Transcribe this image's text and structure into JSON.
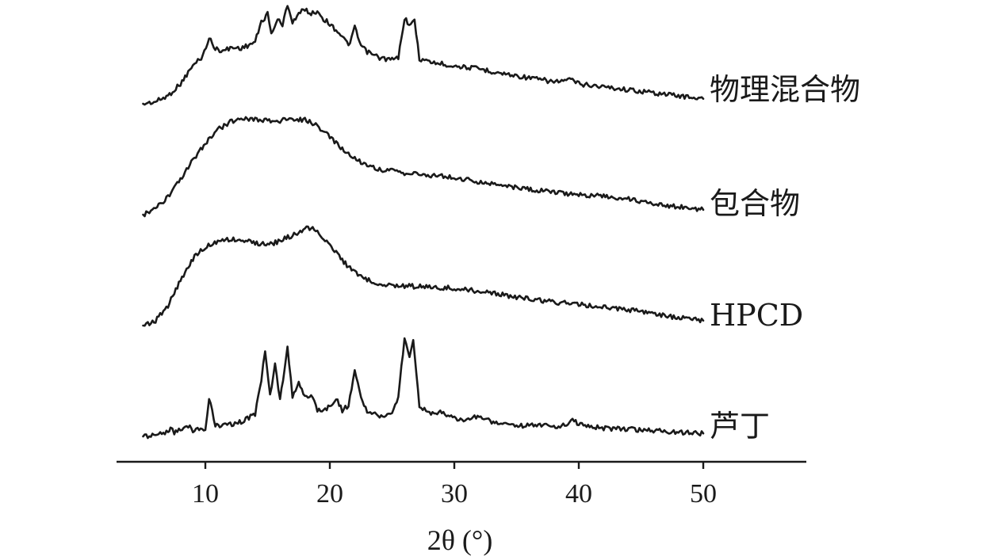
{
  "chart_data": {
    "type": "line",
    "xlabel": "2θ (°)",
    "xlim": [
      5,
      50
    ],
    "x_ticks": [
      10,
      20,
      30,
      40,
      50
    ],
    "y_axis_shown": false,
    "grid": false,
    "legend": "labels at right end of each curve",
    "stacked_offset": true,
    "series": [
      {
        "name": "物理混合物",
        "points": [
          [
            5,
            0.0
          ],
          [
            6,
            0.02
          ],
          [
            7,
            0.08
          ],
          [
            8,
            0.2
          ],
          [
            9,
            0.38
          ],
          [
            9.8,
            0.48
          ],
          [
            10.3,
            0.66
          ],
          [
            10.8,
            0.55
          ],
          [
            11.5,
            0.53
          ],
          [
            12,
            0.56
          ],
          [
            13,
            0.56
          ],
          [
            14,
            0.62
          ],
          [
            14.5,
            0.82
          ],
          [
            15,
            0.9
          ],
          [
            15.3,
            0.7
          ],
          [
            15.8,
            0.85
          ],
          [
            16.2,
            0.78
          ],
          [
            16.6,
            1.0
          ],
          [
            17,
            0.82
          ],
          [
            17.5,
            0.9
          ],
          [
            18,
            0.95
          ],
          [
            18.5,
            0.9
          ],
          [
            19,
            0.93
          ],
          [
            19.5,
            0.85
          ],
          [
            20,
            0.8
          ],
          [
            20.5,
            0.74
          ],
          [
            21,
            0.68
          ],
          [
            21.5,
            0.58
          ],
          [
            22,
            0.76
          ],
          [
            22.5,
            0.58
          ],
          [
            23,
            0.52
          ],
          [
            24,
            0.46
          ],
          [
            25,
            0.44
          ],
          [
            25.5,
            0.46
          ],
          [
            26,
            0.86
          ],
          [
            26.5,
            0.78
          ],
          [
            26.8,
            0.84
          ],
          [
            27.2,
            0.45
          ],
          [
            28,
            0.42
          ],
          [
            29,
            0.4
          ],
          [
            30,
            0.38
          ],
          [
            32,
            0.35
          ],
          [
            34,
            0.3
          ],
          [
            36,
            0.26
          ],
          [
            38,
            0.22
          ],
          [
            39.5,
            0.24
          ],
          [
            40,
            0.2
          ],
          [
            42,
            0.17
          ],
          [
            44,
            0.14
          ],
          [
            46,
            0.11
          ],
          [
            48,
            0.08
          ],
          [
            50,
            0.05
          ]
        ]
      },
      {
        "name": "包合物",
        "points": [
          [
            5,
            0.0
          ],
          [
            6,
            0.06
          ],
          [
            7,
            0.18
          ],
          [
            8,
            0.36
          ],
          [
            9,
            0.56
          ],
          [
            10,
            0.74
          ],
          [
            11,
            0.88
          ],
          [
            12,
            0.96
          ],
          [
            13,
            1.0
          ],
          [
            14,
            0.99
          ],
          [
            15,
            0.97
          ],
          [
            16,
            0.97
          ],
          [
            17,
            0.99
          ],
          [
            18,
            0.98
          ],
          [
            19,
            0.92
          ],
          [
            20,
            0.8
          ],
          [
            21,
            0.68
          ],
          [
            22,
            0.58
          ],
          [
            23,
            0.51
          ],
          [
            24,
            0.47
          ],
          [
            25,
            0.45
          ],
          [
            26,
            0.43
          ],
          [
            27,
            0.42
          ],
          [
            28,
            0.41
          ],
          [
            29,
            0.4
          ],
          [
            30,
            0.38
          ],
          [
            32,
            0.34
          ],
          [
            34,
            0.3
          ],
          [
            36,
            0.26
          ],
          [
            38,
            0.23
          ],
          [
            40,
            0.21
          ],
          [
            42,
            0.19
          ],
          [
            44,
            0.16
          ],
          [
            46,
            0.12
          ],
          [
            48,
            0.08
          ],
          [
            50,
            0.05
          ]
        ]
      },
      {
        "name": "HPCD",
        "points": [
          [
            5,
            0.0
          ],
          [
            6,
            0.05
          ],
          [
            7,
            0.2
          ],
          [
            8,
            0.46
          ],
          [
            9,
            0.68
          ],
          [
            10,
            0.8
          ],
          [
            11,
            0.86
          ],
          [
            12,
            0.88
          ],
          [
            13,
            0.87
          ],
          [
            14,
            0.84
          ],
          [
            15,
            0.82
          ],
          [
            16,
            0.86
          ],
          [
            17,
            0.92
          ],
          [
            18,
            0.98
          ],
          [
            18.5,
            1.0
          ],
          [
            19,
            0.96
          ],
          [
            20,
            0.82
          ],
          [
            21,
            0.66
          ],
          [
            22,
            0.54
          ],
          [
            23,
            0.47
          ],
          [
            24,
            0.43
          ],
          [
            25,
            0.41
          ],
          [
            26,
            0.4
          ],
          [
            27,
            0.4
          ],
          [
            28,
            0.39
          ],
          [
            30,
            0.38
          ],
          [
            32,
            0.35
          ],
          [
            34,
            0.31
          ],
          [
            36,
            0.27
          ],
          [
            38,
            0.24
          ],
          [
            40,
            0.22
          ],
          [
            42,
            0.19
          ],
          [
            44,
            0.16
          ],
          [
            46,
            0.12
          ],
          [
            48,
            0.08
          ],
          [
            50,
            0.05
          ]
        ]
      },
      {
        "name": "芦丁",
        "points": [
          [
            5,
            0.0
          ],
          [
            6,
            0.02
          ],
          [
            7,
            0.04
          ],
          [
            7.2,
            0.1
          ],
          [
            7.5,
            0.04
          ],
          [
            8,
            0.06
          ],
          [
            8.5,
            0.12
          ],
          [
            9,
            0.06
          ],
          [
            10,
            0.08
          ],
          [
            10.3,
            0.38
          ],
          [
            10.8,
            0.1
          ],
          [
            12,
            0.12
          ],
          [
            13,
            0.15
          ],
          [
            14,
            0.22
          ],
          [
            14.5,
            0.56
          ],
          [
            14.8,
            0.85
          ],
          [
            15.2,
            0.4
          ],
          [
            15.6,
            0.7
          ],
          [
            16,
            0.35
          ],
          [
            16.6,
            0.88
          ],
          [
            17,
            0.4
          ],
          [
            17.5,
            0.52
          ],
          [
            18,
            0.38
          ],
          [
            18.5,
            0.42
          ],
          [
            19,
            0.26
          ],
          [
            19.5,
            0.25
          ],
          [
            20,
            0.3
          ],
          [
            20.5,
            0.38
          ],
          [
            21,
            0.26
          ],
          [
            21.5,
            0.3
          ],
          [
            22,
            0.65
          ],
          [
            22.5,
            0.38
          ],
          [
            23,
            0.24
          ],
          [
            24,
            0.2
          ],
          [
            25,
            0.22
          ],
          [
            25.5,
            0.4
          ],
          [
            26,
            0.97
          ],
          [
            26.4,
            0.8
          ],
          [
            26.7,
            0.93
          ],
          [
            27.2,
            0.3
          ],
          [
            28,
            0.22
          ],
          [
            29,
            0.25
          ],
          [
            29.5,
            0.2
          ],
          [
            30,
            0.18
          ],
          [
            31,
            0.16
          ],
          [
            32,
            0.2
          ],
          [
            33,
            0.14
          ],
          [
            34,
            0.12
          ],
          [
            35,
            0.1
          ],
          [
            36,
            0.11
          ],
          [
            37,
            0.12
          ],
          [
            38,
            0.09
          ],
          [
            39,
            0.12
          ],
          [
            39.5,
            0.16
          ],
          [
            40,
            0.12
          ],
          [
            41,
            0.1
          ],
          [
            42,
            0.08
          ],
          [
            44,
            0.07
          ],
          [
            46,
            0.06
          ],
          [
            48,
            0.04
          ],
          [
            50,
            0.03
          ]
        ]
      }
    ]
  }
}
